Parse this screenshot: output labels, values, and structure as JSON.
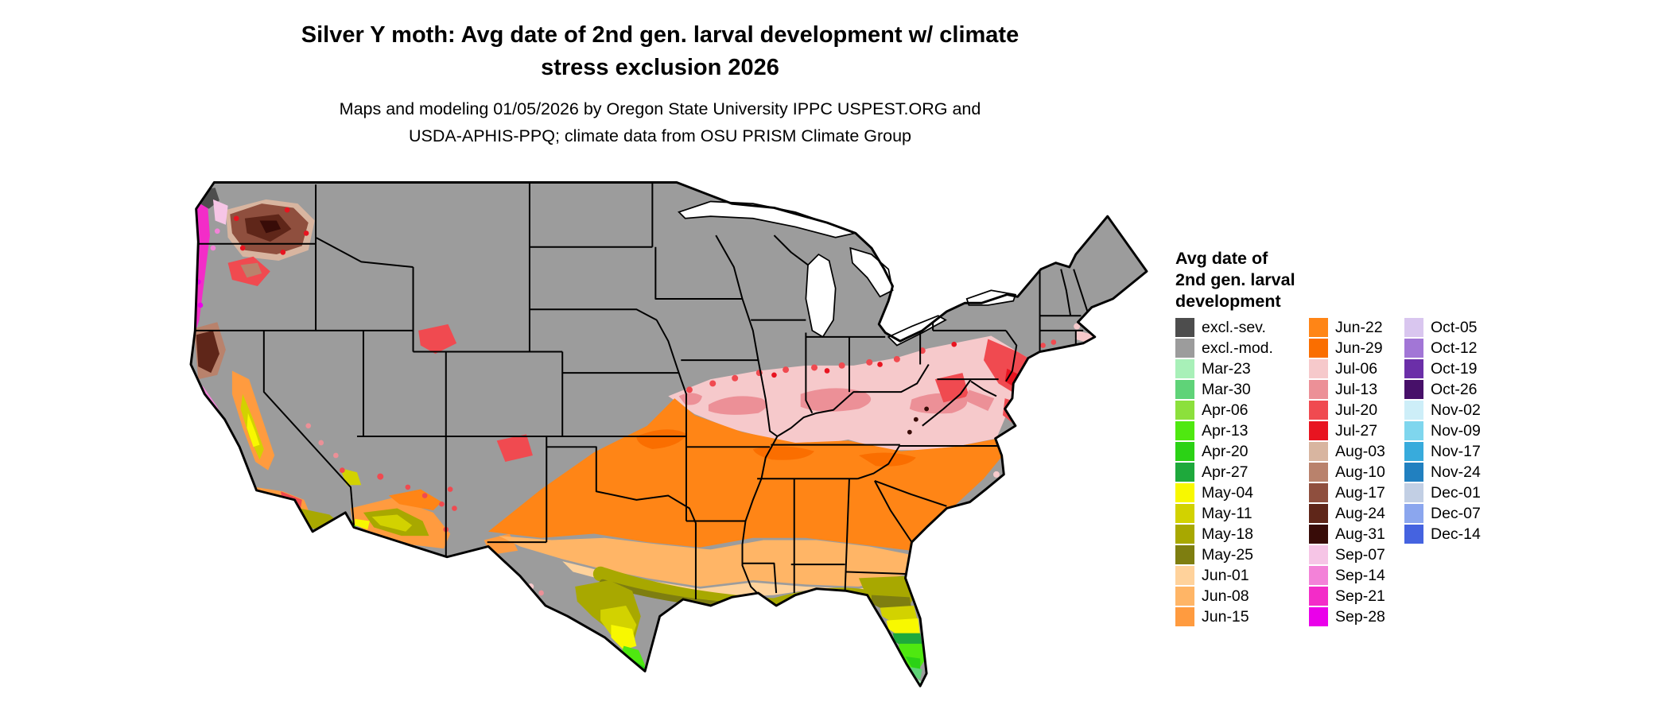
{
  "title": {
    "lines": [
      "Silver Y moth: Avg date of 2nd gen. larval development w/ climate",
      "stress exclusion 2026"
    ]
  },
  "subtitle": {
    "lines": [
      "Maps and modeling 01/05/2026 by Oregon State University IPPC USPEST.ORG and",
      "USDA-APHIS-PPQ; climate data from OSU PRISM Climate Group"
    ]
  },
  "map": {
    "description": "Contiguous United States choropleth map of average date of 2nd generation larval development with climate stress exclusion",
    "base_color_label": "excl.-mod."
  },
  "legend": {
    "title_lines": [
      "Avg date of",
      "2nd gen. larval",
      "development"
    ],
    "columns": [
      {
        "items": [
          {
            "label": "excl.-sev.",
            "color": "#4d4d4d"
          },
          {
            "label": "excl.-mod.",
            "color": "#9c9c9c"
          },
          {
            "label": "Mar-23",
            "color": "#a8f0b8"
          },
          {
            "label": "Mar-30",
            "color": "#5fd378"
          },
          {
            "label": "Apr-06",
            "color": "#8ce03c"
          },
          {
            "label": "Apr-13",
            "color": "#4fe810"
          },
          {
            "label": "Apr-20",
            "color": "#2bd215"
          },
          {
            "label": "Apr-27",
            "color": "#1ea93c"
          },
          {
            "label": "May-04",
            "color": "#f8f800"
          },
          {
            "label": "May-11",
            "color": "#d2d200"
          },
          {
            "label": "May-18",
            "color": "#a8a800"
          },
          {
            "label": "May-25",
            "color": "#7e7e10"
          },
          {
            "label": "Jun-01",
            "color": "#ffd29b"
          },
          {
            "label": "Jun-08",
            "color": "#ffb566"
          },
          {
            "label": "Jun-15",
            "color": "#ff9b3f"
          }
        ]
      },
      {
        "items": [
          {
            "label": "Jun-22",
            "color": "#ff8516"
          },
          {
            "label": "Jun-29",
            "color": "#fa6e00"
          },
          {
            "label": "Jul-06",
            "color": "#f6c9cb"
          },
          {
            "label": "Jul-13",
            "color": "#ec9097"
          },
          {
            "label": "Jul-20",
            "color": "#f04a50"
          },
          {
            "label": "Jul-27",
            "color": "#e81420"
          },
          {
            "label": "Aug-03",
            "color": "#d8b5a0"
          },
          {
            "label": "Aug-10",
            "color": "#b9826c"
          },
          {
            "label": "Aug-17",
            "color": "#8f4f3e"
          },
          {
            "label": "Aug-24",
            "color": "#5f2619"
          },
          {
            "label": "Aug-31",
            "color": "#380c08"
          },
          {
            "label": "Sep-07",
            "color": "#f6c5e6"
          },
          {
            "label": "Sep-14",
            "color": "#f382d8"
          },
          {
            "label": "Sep-21",
            "color": "#f32cc8"
          },
          {
            "label": "Sep-28",
            "color": "#ea00ea"
          }
        ]
      },
      {
        "items": [
          {
            "label": "Oct-05",
            "color": "#d9c6ef"
          },
          {
            "label": "Oct-12",
            "color": "#a276d6"
          },
          {
            "label": "Oct-19",
            "color": "#6b2fa8"
          },
          {
            "label": "Oct-26",
            "color": "#471069"
          },
          {
            "label": "Nov-02",
            "color": "#cdeef8"
          },
          {
            "label": "Nov-09",
            "color": "#7fd6ee"
          },
          {
            "label": "Nov-17",
            "color": "#38abdc"
          },
          {
            "label": "Nov-24",
            "color": "#2180c0"
          },
          {
            "label": "Dec-01",
            "color": "#c2cfe4"
          },
          {
            "label": "Dec-07",
            "color": "#8ba6ee"
          },
          {
            "label": "Dec-14",
            "color": "#4563e0"
          }
        ]
      }
    ]
  }
}
